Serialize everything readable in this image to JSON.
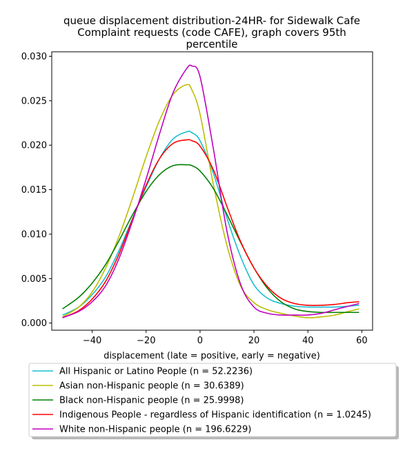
{
  "chart_data": {
    "type": "line",
    "title": "queue displacement distribution-24HR-  for Sidewalk Cafe Complaint  requests (code CAFE), graph covers 95th percentile",
    "title_lines": [
      "queue displacement distribution-24HR-  for Sidewalk Cafe",
      "Complaint  requests (code CAFE), graph covers 95th",
      "percentile"
    ],
    "xlabel": "displacement (late = positive, early = negative)",
    "ylabel": "",
    "xlim": [
      -55,
      64
    ],
    "ylim": [
      -0.0008,
      0.0305
    ],
    "xticks": [
      -40,
      -20,
      0,
      20,
      40,
      60
    ],
    "xtick_labels": [
      "−40",
      "−20",
      "0",
      "20",
      "40",
      "60"
    ],
    "yticks": [
      0.0,
      0.005,
      0.01,
      0.015,
      0.02,
      0.025,
      0.03
    ],
    "ytick_labels": [
      "0.000",
      "0.005",
      "0.010",
      "0.015",
      "0.020",
      "0.025",
      "0.030"
    ],
    "grid": false,
    "legend_position": "below plot",
    "x": [
      -51,
      -45,
      -40,
      -35,
      -30,
      -25,
      -20,
      -15,
      -10,
      -5,
      -3,
      0,
      5,
      10,
      15,
      20,
      25,
      30,
      35,
      40,
      45,
      50,
      55,
      59
    ],
    "series": [
      {
        "name": "All Hispanic or Latino People (n = 52.2236)",
        "color": "#17becf",
        "values": [
          0.0009,
          0.0018,
          0.0032,
          0.0052,
          0.0082,
          0.0118,
          0.0153,
          0.0185,
          0.0207,
          0.0215,
          0.0214,
          0.0205,
          0.0168,
          0.0118,
          0.0075,
          0.0043,
          0.0028,
          0.0022,
          0.0019,
          0.0018,
          0.0018,
          0.0018,
          0.0019,
          0.002
        ]
      },
      {
        "name": "Asian non-Hispanic people (n = 30.6389)",
        "color": "#bcbd00",
        "values": [
          0.0007,
          0.0018,
          0.0035,
          0.0062,
          0.0098,
          0.0141,
          0.0187,
          0.0228,
          0.0257,
          0.0268,
          0.0262,
          0.0235,
          0.0155,
          0.0087,
          0.0042,
          0.0023,
          0.0015,
          0.0011,
          0.0008,
          0.0006,
          0.0007,
          0.0009,
          0.0013,
          0.0016
        ]
      },
      {
        "name": "Black non-Hispanic people (n = 25.9998)",
        "color": "#008000",
        "values": [
          0.0016,
          0.0029,
          0.0045,
          0.0066,
          0.0093,
          0.0122,
          0.0148,
          0.0167,
          0.0177,
          0.0178,
          0.0177,
          0.0171,
          0.0151,
          0.0122,
          0.0091,
          0.0062,
          0.0039,
          0.0024,
          0.0016,
          0.0013,
          0.0012,
          0.0012,
          0.0012,
          0.0012
        ]
      },
      {
        "name": "Indigenous People - regardless of Hispanic identification (n = 1.0245)",
        "color": "#ff0000",
        "values": [
          0.0006,
          0.0014,
          0.0027,
          0.0047,
          0.0078,
          0.0117,
          0.0155,
          0.0185,
          0.0202,
          0.0206,
          0.0205,
          0.0199,
          0.0172,
          0.0131,
          0.0092,
          0.0062,
          0.0041,
          0.0028,
          0.0022,
          0.002,
          0.002,
          0.0021,
          0.0023,
          0.0024
        ]
      },
      {
        "name": "White non-Hispanic people (n = 196.6229)",
        "color": "#bf00bf",
        "values": [
          0.0006,
          0.0013,
          0.0024,
          0.0042,
          0.0073,
          0.0115,
          0.0162,
          0.0213,
          0.0259,
          0.0286,
          0.0289,
          0.0277,
          0.0195,
          0.0103,
          0.0044,
          0.0018,
          0.0011,
          0.0009,
          0.0009,
          0.0009,
          0.0011,
          0.0015,
          0.0019,
          0.0022
        ]
      }
    ]
  }
}
